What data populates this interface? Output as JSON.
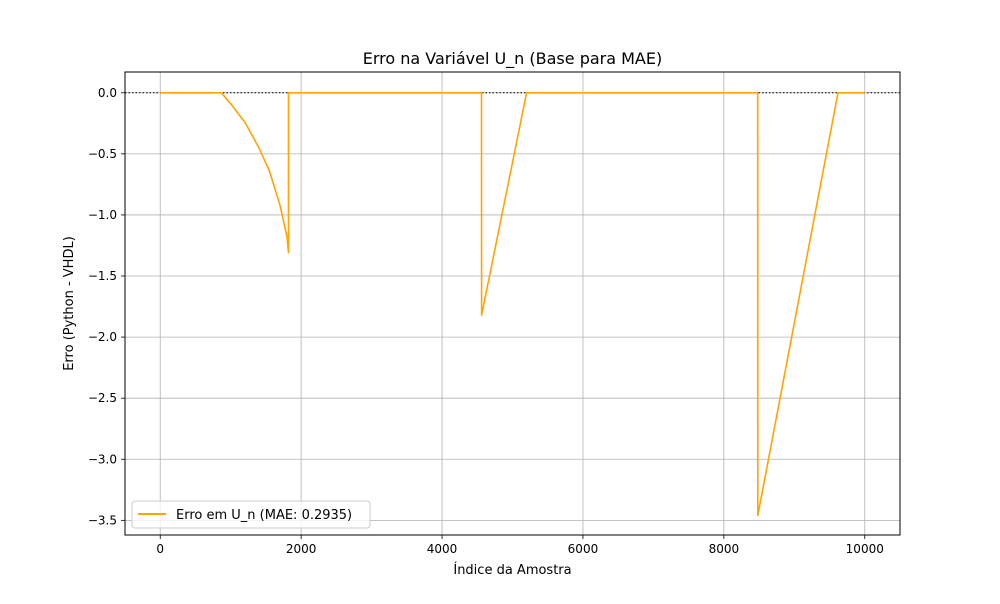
{
  "chart_data": {
    "type": "line",
    "title": "Erro na Variável U_n (Base para MAE)",
    "xlabel": "Índice da Amostra",
    "ylabel": "Erro (Python - VHDL)",
    "xlim": [
      -500,
      10500
    ],
    "ylim": [
      -3.62,
      0.17
    ],
    "xticks": [
      0,
      2000,
      4000,
      6000,
      8000,
      10000
    ],
    "xtick_labels": [
      "0",
      "2000",
      "4000",
      "6000",
      "8000",
      "10000"
    ],
    "yticks": [
      0.0,
      -0.5,
      -1.0,
      -1.5,
      -2.0,
      -2.5,
      -3.0,
      -3.5
    ],
    "ytick_labels": [
      "0.0",
      "−0.5",
      "−1.0",
      "−1.5",
      "−2.0",
      "−2.5",
      "−3.0",
      "−3.5"
    ],
    "grid": true,
    "legend_position": "lower-left",
    "reference_line": {
      "y": 0,
      "style": "dotted",
      "color": "#000000"
    },
    "series": [
      {
        "name": "Erro em U_n (MAE: 0.2935)",
        "color": "#ffa500",
        "x": [
          0,
          870,
          1000,
          1200,
          1400,
          1550,
          1700,
          1800,
          1820,
          1821,
          4560,
          4561,
          5200,
          8480,
          8481,
          9620,
          10000
        ],
        "y": [
          0,
          0,
          -0.09,
          -0.24,
          -0.45,
          -0.64,
          -0.92,
          -1.18,
          -1.31,
          0,
          0,
          -1.82,
          0,
          0,
          -3.46,
          0,
          0
        ]
      }
    ]
  }
}
